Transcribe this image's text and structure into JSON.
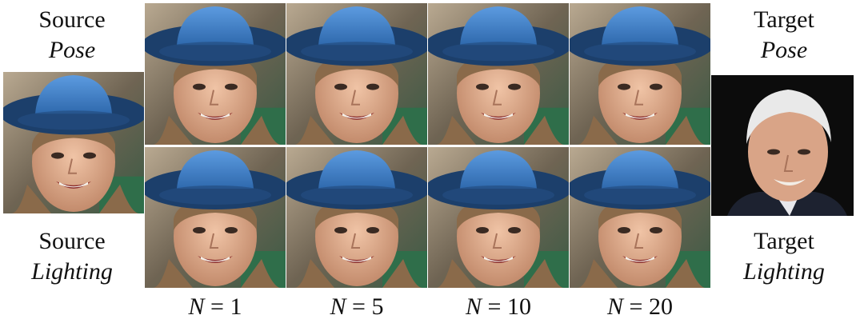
{
  "left": {
    "top_label_line1": "Source",
    "top_label_line2": "Pose",
    "bottom_label_line1": "Source",
    "bottom_label_line2": "Lighting"
  },
  "right": {
    "top_label_line1": "Target",
    "top_label_line2": "Pose",
    "bottom_label_line1": "Target",
    "bottom_label_line2": "Lighting"
  },
  "columns": [
    {
      "var": "N",
      "eq": " = 1"
    },
    {
      "var": "N",
      "eq": " = 5"
    },
    {
      "var": "N",
      "eq": " = 10"
    },
    {
      "var": "N",
      "eq": " = 20"
    }
  ],
  "colors": {
    "hat": "#3b7ec9",
    "hat_band": "#1c3f6b",
    "skin": "#d9a98a",
    "hair": "#8a6a4a",
    "bg_green": "#2f6e4a",
    "target_bg": "#0c0c0c",
    "target_hair": "#e9e9e9"
  }
}
